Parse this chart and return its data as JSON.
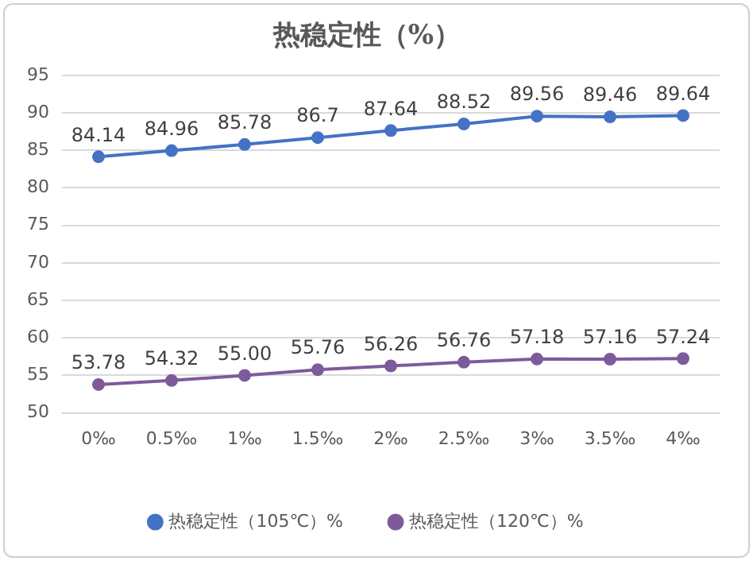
{
  "chart_data": {
    "type": "line",
    "title": "热稳定性（%）",
    "categories": [
      "0‰",
      "0.5‰",
      "1‰",
      "1.5‰",
      "2‰",
      "2.5‰",
      "3‰",
      "3.5‰",
      "4‰"
    ],
    "series": [
      {
        "name": "热稳定性（105℃）%",
        "color": "#4472c4",
        "values": [
          84.14,
          84.96,
          85.78,
          86.7,
          87.64,
          88.52,
          89.56,
          89.46,
          89.64
        ],
        "value_labels": [
          "84.14",
          "84.96",
          "85.78",
          "86.7",
          "87.64",
          "88.52",
          "89.56",
          "89.46",
          "89.64"
        ]
      },
      {
        "name": "热稳定性（120℃）%",
        "color": "#7e5a9b",
        "values": [
          53.78,
          54.32,
          55.0,
          55.76,
          56.26,
          56.76,
          57.18,
          57.16,
          57.24
        ],
        "value_labels": [
          "53.78",
          "54.32",
          "55.00",
          "55.76",
          "56.26",
          "56.76",
          "57.18",
          "57.16",
          "57.24"
        ]
      }
    ],
    "ylim": [
      50,
      95
    ],
    "yticks": [
      50,
      55,
      60,
      65,
      70,
      75,
      80,
      85,
      90,
      95
    ],
    "grid": "y",
    "legend": "bottom",
    "marker": "circle",
    "line_style": "solid"
  }
}
